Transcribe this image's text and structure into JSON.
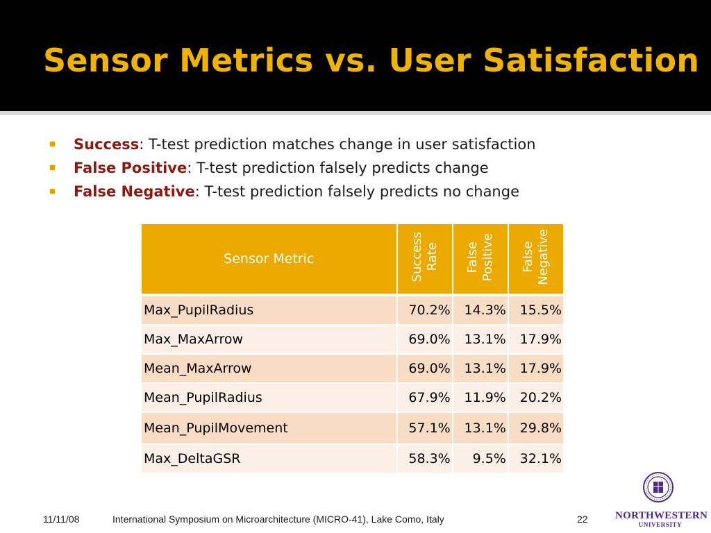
{
  "slide": {
    "title": "Sensor Metrics vs. User Satisfaction",
    "accent_color": "#f0b400",
    "bullets": [
      {
        "term": "Success",
        "text": ": T-test prediction matches change in user satisfaction"
      },
      {
        "term": "False Positive",
        "text": ": T-test prediction falsely predicts change"
      },
      {
        "term": "False Negative",
        "text": ": T-test prediction falsely predicts no change"
      }
    ]
  },
  "table": {
    "header_color": "#ecaa00",
    "headers": {
      "metric": "Sensor Metric",
      "success_line1": "Success",
      "success_line2": "Rate",
      "fp_line1": "False",
      "fp_line2": "Positive",
      "fn_line1": "False",
      "fn_line2": "Negative"
    },
    "rows": [
      {
        "metric": "Max_PupilRadius",
        "success": "70.2%",
        "fp": "14.3%",
        "fn": "15.5%"
      },
      {
        "metric": "Max_MaxArrow",
        "success": "69.0%",
        "fp": "13.1%",
        "fn": "17.9%"
      },
      {
        "metric": "Mean_MaxArrow",
        "success": "69.0%",
        "fp": "13.1%",
        "fn": "17.9%"
      },
      {
        "metric": "Mean_PupilRadius",
        "success": "67.9%",
        "fp": "11.9%",
        "fn": "20.2%"
      },
      {
        "metric": "Mean_PupilMovement",
        "success": "57.1%",
        "fp": "13.1%",
        "fn": "29.8%"
      },
      {
        "metric": "Max_DeltaGSR",
        "success": "58.3%",
        "fp": "9.5%",
        "fn": "32.1%"
      }
    ]
  },
  "footer": {
    "date": "11/11/08",
    "venue": "International Symposium on Microarchitecture (MICRO-41), Lake Como, Italy",
    "page": "22"
  },
  "logo": {
    "icon": "university-seal-icon",
    "line1": "NORTHWESTERN",
    "line2": "UNIVERSITY",
    "color": "#4e2a84"
  }
}
